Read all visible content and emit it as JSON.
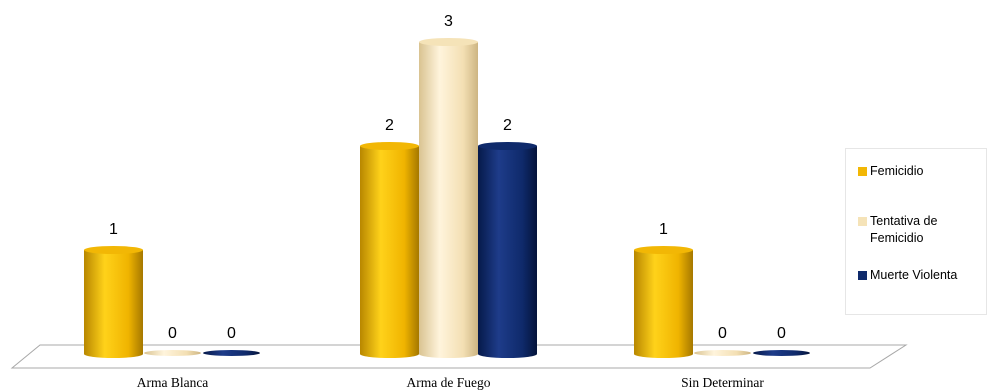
{
  "chart_data": {
    "type": "bar",
    "categories": [
      "Arma Blanca",
      "Arma de Fuego",
      "Sin Determinar"
    ],
    "series": [
      {
        "name": "Femicidio",
        "values": [
          1,
          2,
          1
        ],
        "color": "#F2B705"
      },
      {
        "name": "Tentativa de Femicidio",
        "values": [
          0,
          3,
          0
        ],
        "color": "#F5E3B8"
      },
      {
        "name": "Muerte Violenta",
        "values": [
          0,
          2,
          0
        ],
        "color": "#0F2A6B"
      }
    ],
    "title": "",
    "xlabel": "",
    "ylabel": "",
    "ylim": [
      0,
      3
    ],
    "grid": false,
    "data_labels": true,
    "legend_position": "right",
    "style": "3d-cylinder"
  },
  "legend": {
    "items": [
      {
        "label": "Femicidio",
        "color": "#F2B705"
      },
      {
        "label": "Tentativa de Femicidio",
        "color": "#F5E3B8"
      },
      {
        "label": "Muerte Violenta",
        "color": "#0F2A6B"
      }
    ]
  }
}
